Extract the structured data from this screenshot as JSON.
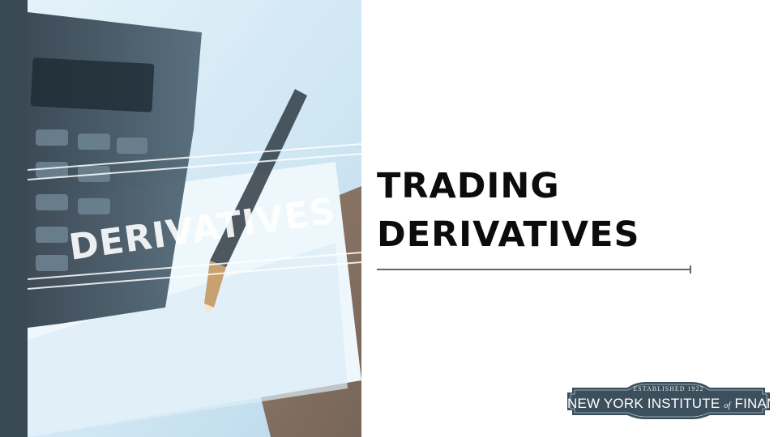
{
  "slide": {
    "title_line1": "TRADING",
    "title_line2": "DERIVATIVES"
  },
  "photo": {
    "overlay_text": "DERIVATIVES"
  },
  "logo": {
    "established": "ESTABLISHED 1922",
    "name_part1": "NEW YORK INSTITUTE",
    "name_of": "of",
    "name_part2": "FINANCE"
  },
  "colors": {
    "sidebar": "#3a4a55",
    "rule": "#5b6875",
    "logo_fill": "#3c4f5c",
    "title": "#0c0c0c"
  }
}
